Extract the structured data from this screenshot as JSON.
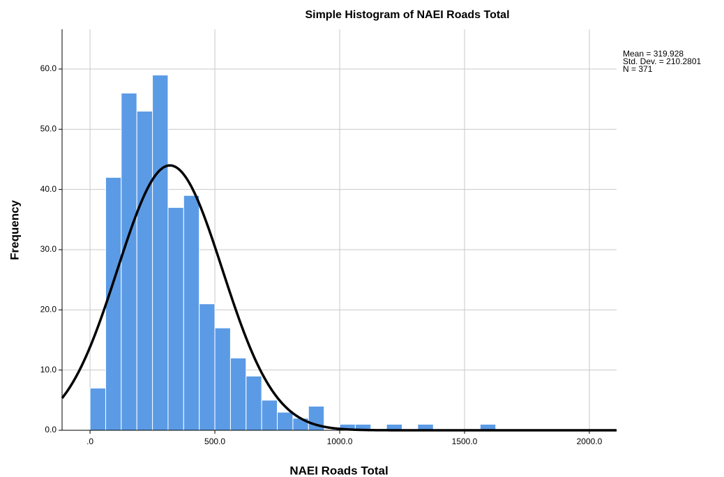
{
  "chart_data": {
    "type": "histogram",
    "title": "Simple Histogram of NAEI Roads Total",
    "xlabel": "NAEI Roads Total",
    "ylabel": "Frequency",
    "bins": [
      0,
      62.5,
      125,
      187.5,
      250,
      312.5,
      375,
      437.5,
      500,
      562.5,
      625,
      687.5,
      750,
      812.5,
      875,
      937.5,
      1000,
      1062.5,
      1125,
      1187.5,
      1250,
      1312.5,
      1375,
      1437.5,
      1500,
      1562.5,
      1625
    ],
    "values": [
      7,
      42,
      56,
      53,
      59,
      37,
      39,
      21,
      17,
      12,
      9,
      5,
      3,
      2,
      4,
      0,
      1,
      1,
      0,
      1,
      0,
      1,
      0,
      0,
      0,
      1
    ],
    "color": "#5b9be6",
    "curve": {
      "mean": 319.928,
      "sd": 210.2801,
      "n": 371,
      "color": "#000000"
    },
    "annotations": [
      "Mean = 319.928",
      "Std. Dev. = 210.2801",
      "N = 371"
    ],
    "xlim": [
      -112,
      2109
    ],
    "ylim": [
      0,
      66.6
    ],
    "xticks": [
      {
        "value": 0,
        "label": ".0"
      },
      {
        "value": 500,
        "label": "500.0"
      },
      {
        "value": 1000,
        "label": "1000.0"
      },
      {
        "value": 1500,
        "label": "1500.0"
      },
      {
        "value": 2000,
        "label": "2000.0"
      }
    ],
    "yticks": [
      {
        "value": 0,
        "label": "0.0"
      },
      {
        "value": 10,
        "label": "10.0"
      },
      {
        "value": 20,
        "label": "20.0"
      },
      {
        "value": 30,
        "label": "30.0"
      },
      {
        "value": 40,
        "label": "40.0"
      },
      {
        "value": 50,
        "label": "50.0"
      },
      {
        "value": 60,
        "label": "60.0"
      }
    ],
    "grid": true
  }
}
